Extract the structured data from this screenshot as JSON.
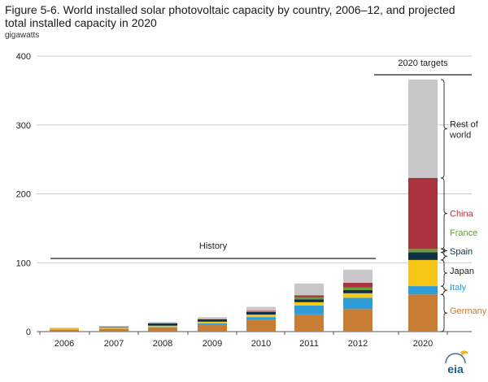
{
  "title": "Figure 5-6. World installed solar photovoltaic capacity by country, 2006–12, and projected total installed capacity in 2020",
  "units": "gigawatts",
  "colors": {
    "Germany": "#c77d34",
    "Italy": "#2e9cd7",
    "Japan": "#f7c718",
    "Spain": "#0f2f44",
    "France": "#6a9a3c",
    "China": "#a8323e",
    "Rest of world": "#c8c8c8"
  },
  "chart_data": {
    "type": "bar",
    "stacked": true,
    "categories": [
      "2006",
      "2007",
      "2008",
      "2009",
      "2010",
      "2011",
      "2012",
      "2020"
    ],
    "series": [
      {
        "name": "Germany",
        "values": [
          2.8,
          4.2,
          6.1,
          10.6,
          17.6,
          25.0,
          32.7,
          54
        ]
      },
      {
        "name": "Italy",
        "values": [
          0.05,
          0.1,
          0.4,
          1.2,
          3.5,
          12.8,
          16.4,
          12
        ]
      },
      {
        "name": "Japan",
        "values": [
          1.7,
          1.9,
          2.1,
          2.6,
          3.6,
          4.9,
          6.6,
          38
        ]
      },
      {
        "name": "Spain",
        "values": [
          0.1,
          0.7,
          3.4,
          3.4,
          3.8,
          4.2,
          4.5,
          11
        ]
      },
      {
        "name": "France",
        "values": [
          0.05,
          0.1,
          0.1,
          0.3,
          1.0,
          2.8,
          4.0,
          5
        ]
      },
      {
        "name": "China",
        "values": [
          0.1,
          0.1,
          0.1,
          0.3,
          0.8,
          3.1,
          6.8,
          103
        ]
      },
      {
        "name": "Rest of world",
        "values": [
          0.9,
          1.2,
          1.7,
          2.6,
          5.6,
          17.0,
          19.0,
          143
        ]
      }
    ],
    "ylim": [
      0,
      400
    ],
    "yticks": [
      0,
      100,
      200,
      300,
      400
    ],
    "grid": true,
    "annotations": {
      "history": "History",
      "targets": "2020 targets",
      "series_labels": [
        "Rest of\nworld",
        "China",
        "France",
        "Spain",
        "Japan",
        "Italy",
        "Germany"
      ]
    },
    "logo": "eia"
  }
}
